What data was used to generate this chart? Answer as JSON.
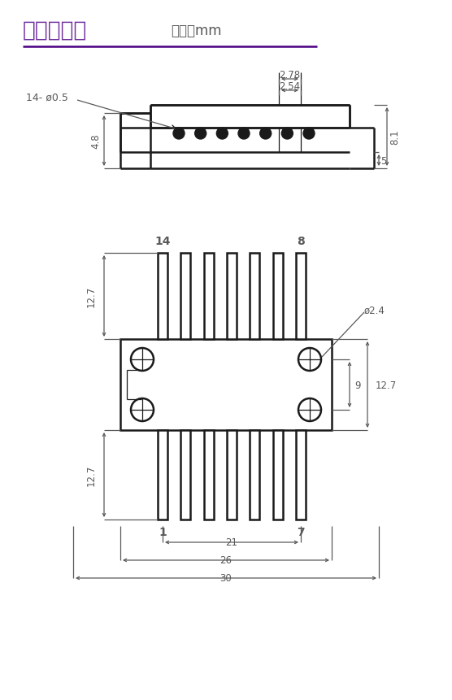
{
  "title": "机械尺寸图",
  "subtitle": "单位：mm",
  "title_color": "#7030A0",
  "subtitle_color": "#595959",
  "line_color": "#1a1a1a",
  "dim_color": "#595959",
  "bg_color": "#ffffff",
  "divider_color": "#4B0082"
}
